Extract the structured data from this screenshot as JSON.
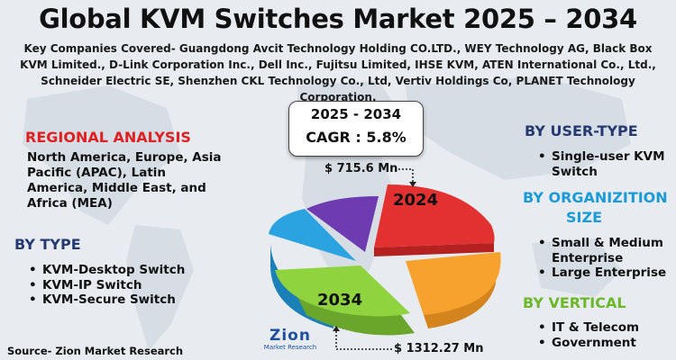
{
  "header": {
    "title": "Global KVM Switches Market 2025 – 2034",
    "companies": "Key Companies Covered- Guangdong Avcit Technology Holding CO.LTD., WEY Technology AG, Black Box KVM Limited., D-Link Corporation Inc., Dell Inc., Fujitsu Limited, IHSE KVM, ATEN International Co., Ltd., Schneider Electric SE, Shenzhen CKL Technology Co., Ltd, Vertiv Holdings Co, PLANET Technology Corporation."
  },
  "cagr": {
    "years": "2025 - 2034",
    "value": "CAGR : 5.8%"
  },
  "left": {
    "regional_title": "REGIONAL ANALYSIS",
    "regional_text": "North America, Europe, Asia Pacific (APAC), Latin America, Middle East, and Africa (MEA)",
    "type_title": "BY TYPE",
    "type_items": [
      "KVM-Desktop Switch",
      "KVM-IP Switch",
      "KVM-Secure Switch"
    ]
  },
  "right": {
    "user_title": "BY USER-TYPE",
    "user_items": [
      "Single-user KVM Switch"
    ],
    "org_title_1": "BY ORGANIZITION",
    "org_title_2": "SIZE",
    "org_items": [
      "Small & Medium Enterprise",
      "Large Enterprise"
    ],
    "vertical_title": "BY VERTICAL",
    "vertical_items": [
      "IT & Telecom",
      "Government"
    ]
  },
  "chart": {
    "value_2024": "$ 715.6 Mn",
    "value_2034": "$ 1312.27 Mn",
    "label_2024": "2024",
    "label_2034": "2034"
  },
  "colors": {
    "red": "#e02020",
    "orange": "#f7a22e",
    "green": "#8fd43f",
    "blue": "#2aa3e0",
    "purple": "#6e3bb0",
    "heading_red": "#e02020",
    "heading_navy": "#253a72",
    "heading_blue": "#1a9ad6",
    "heading_green": "#6bb829"
  },
  "footer": {
    "source": "Source- Zion Market Research",
    "logo_text": "Zion",
    "logo_sub": "Market Research"
  }
}
